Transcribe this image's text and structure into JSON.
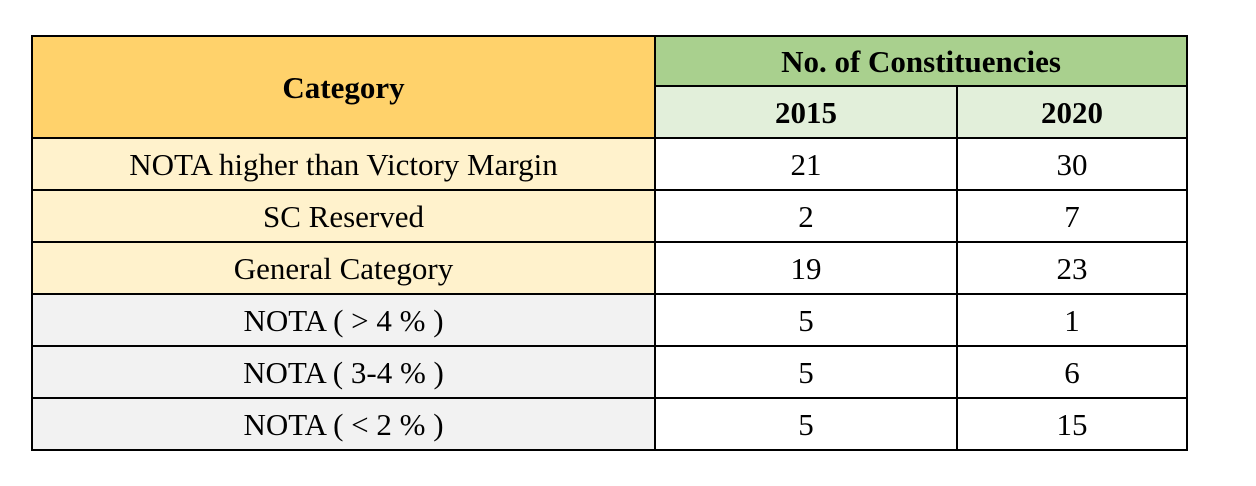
{
  "table": {
    "header": {
      "category_label": "Category",
      "group_label": "No. of Constituencies",
      "years": [
        "2015",
        "2020"
      ]
    },
    "rows": [
      {
        "category": "NOTA higher than Victory Margin",
        "v2015": "21",
        "v2020": "30",
        "shade": "warm"
      },
      {
        "category": "SC Reserved",
        "v2015": "2",
        "v2020": "7",
        "shade": "warm"
      },
      {
        "category": "General Category",
        "v2015": "19",
        "v2020": "23",
        "shade": "warm"
      },
      {
        "category": "NOTA ( > 4 % )",
        "v2015": "5",
        "v2020": "1",
        "shade": "grey"
      },
      {
        "category": "NOTA ( 3-4 % )",
        "v2015": "5",
        "v2020": "6",
        "shade": "grey"
      },
      {
        "category": "NOTA ( < 2 % )",
        "v2015": "5",
        "v2020": "15",
        "shade": "grey"
      }
    ],
    "colors": {
      "category_header": "#ffd26b",
      "group_header": "#a9d08e",
      "year_header": "#e2efda",
      "category_warm": "#fff2cc",
      "category_grey": "#f2f2f2"
    }
  }
}
